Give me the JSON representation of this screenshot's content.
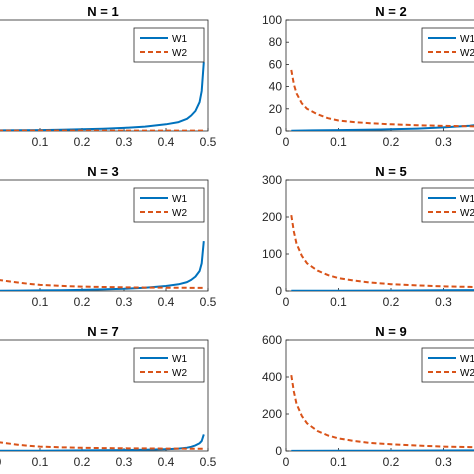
{
  "chart_data": [
    {
      "type": "line",
      "title": "N = 1",
      "xlim": [
        0,
        0.5
      ],
      "ylim": [
        0,
        100
      ],
      "xticks": [
        "0.1",
        "0.2",
        "0.3",
        "0.4",
        "0.5"
      ],
      "yticks": [],
      "legend": {
        "position": "top-right",
        "entries": [
          "W1",
          "W2"
        ]
      },
      "series": [
        {
          "name": "W1",
          "color": "#0072BD",
          "style": "solid",
          "x": [
            0,
            0.05,
            0.1,
            0.15,
            0.2,
            0.25,
            0.3,
            0.35,
            0.4,
            0.43,
            0.45,
            0.46,
            0.47,
            0.48,
            0.485,
            0.49
          ],
          "y": [
            0.5,
            0.6,
            0.8,
            1.1,
            1.5,
            2,
            2.8,
            4,
            6,
            8,
            11,
            14,
            18,
            26,
            36,
            62
          ]
        },
        {
          "name": "W2",
          "color": "#D95319",
          "style": "dashed",
          "x": [
            0,
            0.1,
            0.2,
            0.3,
            0.4,
            0.45,
            0.49
          ],
          "y": [
            0.4,
            0.4,
            0.4,
            0.4,
            0.4,
            0.4,
            0.4
          ]
        }
      ]
    },
    {
      "type": "line",
      "title": "N = 2",
      "xlim": [
        0,
        0.4
      ],
      "ylim": [
        0,
        100
      ],
      "xticks": [
        "0",
        "0.1",
        "0.2",
        "0.3"
      ],
      "yticks": [
        "0",
        "20",
        "40",
        "60",
        "80",
        "100"
      ],
      "legend": {
        "position": "top-right",
        "entries": [
          "W1",
          "W2"
        ]
      },
      "series": [
        {
          "name": "W1",
          "color": "#0072BD",
          "style": "solid",
          "x": [
            0.01,
            0.05,
            0.1,
            0.15,
            0.2,
            0.25,
            0.3,
            0.35,
            0.4
          ],
          "y": [
            0.3,
            0.5,
            0.8,
            1.1,
            1.5,
            2.2,
            3.2,
            4.8,
            7
          ]
        },
        {
          "name": "W2",
          "color": "#D95319",
          "style": "dashed",
          "x": [
            0.01,
            0.015,
            0.02,
            0.03,
            0.04,
            0.06,
            0.08,
            0.1,
            0.13,
            0.16,
            0.2,
            0.25,
            0.3,
            0.35,
            0.4
          ],
          "y": [
            55,
            42,
            34,
            25,
            20,
            15,
            11.5,
            9.5,
            8,
            7,
            6,
            5.2,
            4.6,
            4.2,
            3.8
          ]
        }
      ]
    },
    {
      "type": "line",
      "title": "N = 3",
      "xlim": [
        0,
        0.5
      ],
      "ylim": [
        0,
        100
      ],
      "xticks": [
        "0.1",
        "0.2",
        "0.3",
        "0.4",
        "0.5"
      ],
      "yticks": [],
      "legend": {
        "position": "top-right",
        "entries": [
          "W1",
          "W2"
        ]
      },
      "series": [
        {
          "name": "W1",
          "color": "#0072BD",
          "style": "solid",
          "x": [
            0,
            0.05,
            0.1,
            0.15,
            0.2,
            0.25,
            0.3,
            0.35,
            0.4,
            0.43,
            0.45,
            0.46,
            0.47,
            0.48,
            0.485,
            0.49
          ],
          "y": [
            0.3,
            0.4,
            0.5,
            0.7,
            1,
            1.4,
            2,
            3,
            4.5,
            6,
            8,
            10,
            13,
            18,
            25,
            45
          ]
        },
        {
          "name": "W2",
          "color": "#D95319",
          "style": "dashed",
          "x": [
            0,
            0.02,
            0.05,
            0.08,
            0.1,
            0.15,
            0.2,
            0.25,
            0.3,
            0.35,
            0.4,
            0.45,
            0.49
          ],
          "y": [
            10,
            9,
            7.5,
            6.2,
            5.5,
            4.6,
            4,
            3.6,
            3.3,
            3.1,
            3,
            2.9,
            2.8
          ]
        }
      ]
    },
    {
      "type": "line",
      "title": "N = 5",
      "xlim": [
        0,
        0.4
      ],
      "ylim": [
        0,
        300
      ],
      "xticks": [
        "0",
        "0.1",
        "0.2",
        "0.3"
      ],
      "yticks": [
        "0",
        "100",
        "200",
        "300"
      ],
      "legend": {
        "position": "top-right",
        "entries": [
          "W1",
          "W2"
        ]
      },
      "series": [
        {
          "name": "W1",
          "color": "#0072BD",
          "style": "solid",
          "x": [
            0.01,
            0.1,
            0.2,
            0.3,
            0.4
          ],
          "y": [
            0.5,
            0.8,
            1.2,
            1.8,
            3
          ]
        },
        {
          "name": "W2",
          "color": "#D95319",
          "style": "dashed",
          "x": [
            0.01,
            0.015,
            0.02,
            0.03,
            0.04,
            0.06,
            0.08,
            0.1,
            0.13,
            0.16,
            0.2,
            0.25,
            0.3,
            0.35,
            0.4
          ],
          "y": [
            205,
            160,
            128,
            95,
            75,
            55,
            43,
            35,
            28,
            23,
            18.5,
            15,
            12.5,
            11,
            10
          ]
        }
      ]
    },
    {
      "type": "line",
      "title": "N = 7",
      "xlim": [
        0,
        0.5
      ],
      "ylim": [
        0,
        100
      ],
      "xticks": [
        "0",
        "0.1",
        "0.2",
        "0.3",
        "0.4",
        "0.5"
      ],
      "yticks": [],
      "legend": {
        "position": "top-right",
        "entries": [
          "W1",
          "W2"
        ]
      },
      "series": [
        {
          "name": "W1",
          "color": "#0072BD",
          "style": "solid",
          "x": [
            0,
            0.1,
            0.2,
            0.3,
            0.35,
            0.4,
            0.43,
            0.45,
            0.46,
            0.47,
            0.48,
            0.485,
            0.49
          ],
          "y": [
            0.2,
            0.3,
            0.5,
            0.8,
            1.1,
            1.6,
            2.2,
            3,
            3.8,
            5,
            7,
            9,
            15
          ]
        },
        {
          "name": "W2",
          "color": "#D95319",
          "style": "dashed",
          "x": [
            0,
            0.02,
            0.05,
            0.08,
            0.1,
            0.15,
            0.2,
            0.25,
            0.3,
            0.35,
            0.4,
            0.45,
            0.49
          ],
          "y": [
            8,
            7,
            5.5,
            4.5,
            4,
            3.3,
            2.9,
            2.6,
            2.4,
            2.3,
            2.2,
            2.1,
            2
          ]
        }
      ]
    },
    {
      "type": "line",
      "title": "N = 9",
      "xlim": [
        0,
        0.4
      ],
      "ylim": [
        0,
        600
      ],
      "xticks": [
        "0",
        "0.1",
        "0.2",
        "0.3"
      ],
      "yticks": [
        "0",
        "200",
        "400",
        "600"
      ],
      "legend": {
        "position": "top-right",
        "entries": [
          "W1",
          "W2"
        ]
      },
      "series": [
        {
          "name": "W1",
          "color": "#0072BD",
          "style": "solid",
          "x": [
            0.01,
            0.1,
            0.2,
            0.3,
            0.4
          ],
          "y": [
            0.5,
            1,
            1.5,
            2.5,
            4
          ]
        },
        {
          "name": "W2",
          "color": "#D95319",
          "style": "dashed",
          "x": [
            0.01,
            0.015,
            0.02,
            0.03,
            0.04,
            0.06,
            0.08,
            0.1,
            0.13,
            0.16,
            0.2,
            0.25,
            0.3,
            0.35,
            0.4
          ],
          "y": [
            410,
            320,
            255,
            190,
            150,
            108,
            84,
            68,
            54,
            44,
            36,
            29,
            24,
            21,
            19
          ]
        }
      ]
    }
  ]
}
